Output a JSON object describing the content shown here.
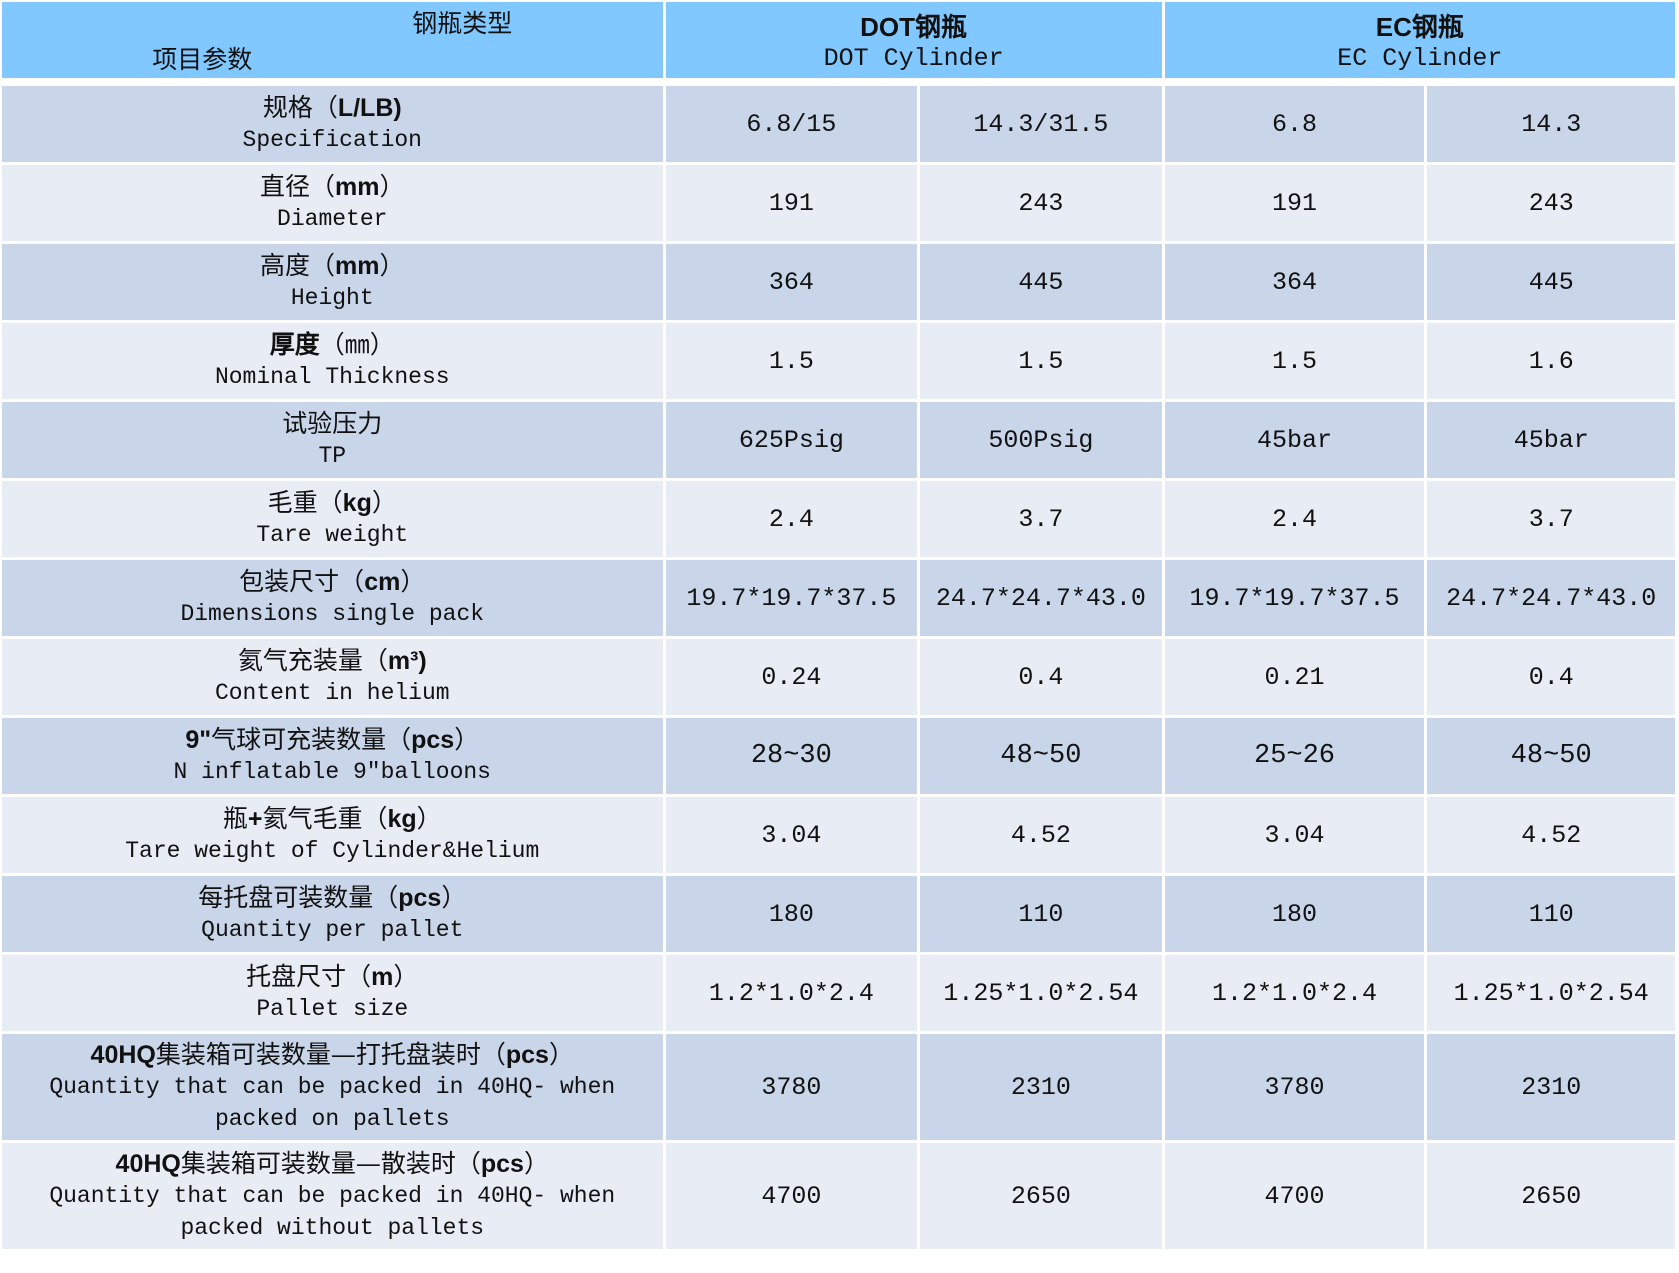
{
  "header": {
    "corner_top": "钢瓶类型",
    "corner_bottom": "项目参数",
    "groups": [
      {
        "cn": "DOT钢瓶",
        "en": "DOT Cylinder"
      },
      {
        "cn": "EC钢瓶",
        "en": "EC Cylinder"
      }
    ]
  },
  "colors": {
    "header": "#80C8FF",
    "row_odd": "#C9D5E8",
    "row_even": "#E8ECF5"
  },
  "rows": [
    {
      "cn": [
        {
          "t": "规格（"
        },
        {
          "t": "L/LB)",
          "b": true
        }
      ],
      "en": "Specification",
      "values": [
        "6.8/15",
        "14.3/31.5",
        "6.8",
        "14.3"
      ]
    },
    {
      "cn": [
        {
          "t": "直径（"
        },
        {
          "t": "mm",
          "b": true
        },
        {
          "t": "）"
        }
      ],
      "en": "Diameter",
      "values": [
        "191",
        "243",
        "191",
        "243"
      ]
    },
    {
      "cn": [
        {
          "t": "高度（"
        },
        {
          "t": "mm",
          "b": true
        },
        {
          "t": "）"
        }
      ],
      "en": "Height",
      "values": [
        "364",
        "445",
        "364",
        "445"
      ]
    },
    {
      "cn": [
        {
          "t": "厚度",
          "b": true
        },
        {
          "t": "（㎜）"
        }
      ],
      "en": "Nominal Thickness",
      "values": [
        "1.5",
        "1.5",
        "1.5",
        "1.6"
      ]
    },
    {
      "cn": [
        {
          "t": "试验压力"
        }
      ],
      "en": "TP",
      "values": [
        "625Psig",
        "500Psig",
        "45bar",
        "45bar"
      ]
    },
    {
      "cn": [
        {
          "t": "毛重（"
        },
        {
          "t": "kg",
          "b": true
        },
        {
          "t": "）"
        }
      ],
      "en": "Tare weight",
      "values": [
        "2.4",
        "3.7",
        "2.4",
        "3.7"
      ]
    },
    {
      "cn": [
        {
          "t": "包装尺寸（"
        },
        {
          "t": "cm",
          "b": true
        },
        {
          "t": "）"
        }
      ],
      "en": "Dimensions single pack",
      "values": [
        "19.7*19.7*37.5",
        "24.7*24.7*43.0",
        "19.7*19.7*37.5",
        "24.7*24.7*43.0"
      ]
    },
    {
      "cn": [
        {
          "t": "氦气充装量（"
        },
        {
          "t": "m³)",
          "b": true
        }
      ],
      "en": "Content in helium",
      "values": [
        "0.24",
        "0.4",
        "0.21",
        "0.4"
      ]
    },
    {
      "cn": [
        {
          "t": "9\"",
          "b": true
        },
        {
          "t": "气球可充装数量（"
        },
        {
          "t": "pcs",
          "b": true
        },
        {
          "t": "）"
        }
      ],
      "en": "N inflatable 9″balloons",
      "values": [
        "28~30",
        "48~50",
        "25~26",
        "48~50"
      ],
      "split": true
    },
    {
      "cn": [
        {
          "t": "瓶"
        },
        {
          "t": "+",
          "b": true
        },
        {
          "t": "氦气毛重（"
        },
        {
          "t": "kg",
          "b": true
        },
        {
          "t": "）"
        }
      ],
      "en": "Tare weight of Cylinder&Helium",
      "values": [
        "3.04",
        "4.52",
        "3.04",
        "4.52"
      ]
    },
    {
      "cn": [
        {
          "t": "每托盘可装数量（"
        },
        {
          "t": "pcs",
          "b": true
        },
        {
          "t": "）"
        }
      ],
      "en": "Quantity per pallet",
      "values": [
        "180",
        "110",
        "180",
        "110"
      ]
    },
    {
      "cn": [
        {
          "t": "托盘尺寸（"
        },
        {
          "t": "m",
          "b": true
        },
        {
          "t": "）"
        }
      ],
      "en": "Pallet size",
      "values": [
        "1.2*1.0*2.4",
        "1.25*1.0*2.54",
        "1.2*1.0*2.4",
        "1.25*1.0*2.54"
      ]
    },
    {
      "cn": [
        {
          "t": "40HQ",
          "b": true
        },
        {
          "t": "集装箱可装数量—打托盘装时（"
        },
        {
          "t": "pcs",
          "b": true
        },
        {
          "t": "）"
        }
      ],
      "en": "Quantity that can be packed in 40HQ- when packed on pallets",
      "values": [
        "3780",
        "2310",
        "3780",
        "2310"
      ],
      "tall": true
    },
    {
      "cn": [
        {
          "t": "40HQ",
          "b": true
        },
        {
          "t": "集装箱可装数量—散装时（"
        },
        {
          "t": "pcs",
          "b": true
        },
        {
          "t": "）"
        }
      ],
      "en": "Quantity that can be packed in 40HQ- when packed without pallets",
      "values": [
        "4700",
        "2650",
        "4700",
        "2650"
      ],
      "tall": true
    }
  ]
}
